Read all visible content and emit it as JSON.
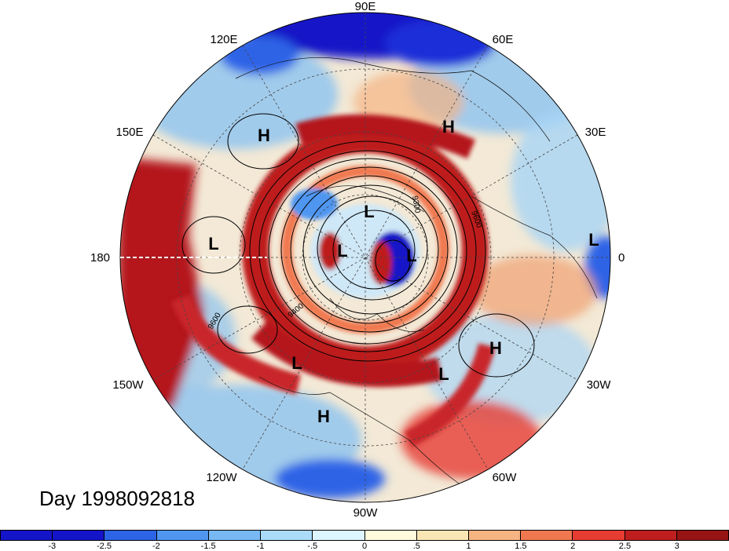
{
  "chart_data": {
    "type": "heatmap",
    "projection": "north-polar-stereographic",
    "longitude_labels": [
      "90E",
      "120E",
      "60E",
      "150E",
      "30E",
      "180",
      "0",
      "150W",
      "30W",
      "120W",
      "60W",
      "90W"
    ],
    "contour_labels": [
      "9300",
      "9600",
      "9400",
      "9600"
    ],
    "highs_lows": [
      "H",
      "H",
      "L",
      "L",
      "L",
      "L",
      "L",
      "H",
      "L",
      "L",
      "H"
    ],
    "colorbar": {
      "ticks": [
        "-3",
        "-2.5",
        "-2",
        "-1.5",
        "-1",
        "-.5",
        "0",
        ".5",
        "1",
        "1.5",
        "2",
        "2.5",
        "3"
      ],
      "colors": [
        "#1414c8",
        "#2d64e6",
        "#5096f0",
        "#78b9f5",
        "#aadcfa",
        "#dcf5ff",
        "#fffadc",
        "#fae6b4",
        "#f5b482",
        "#f07850",
        "#e63c32",
        "#be1e1e",
        "#961414"
      ]
    }
  },
  "caption": "Day 1998092818",
  "colors": {
    "ocean_band_red": "#b4141e",
    "inner_blue": "#2850c8",
    "neutral": "#f5f0e6"
  }
}
